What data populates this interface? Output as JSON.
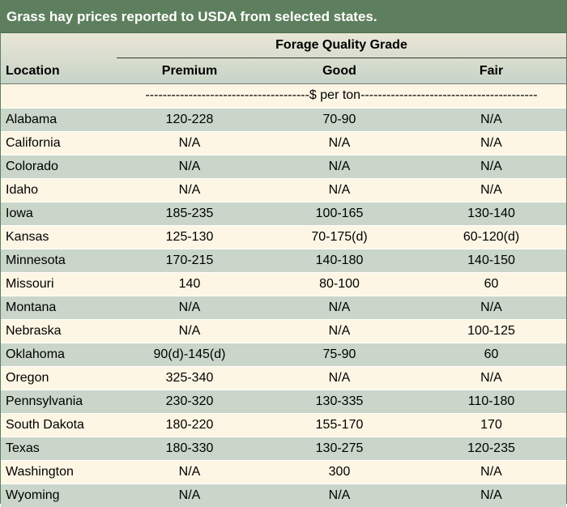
{
  "title": "Grass hay prices reported to USDA from selected states.",
  "header": {
    "group_label": "Forage Quality Grade",
    "location_label": "Location",
    "columns": [
      "Premium",
      "Good",
      "Fair"
    ]
  },
  "unit_label": "--------------------------------------$ per ton-----------------------------------------",
  "rows": [
    {
      "location": "Alabama",
      "premium": "120-228",
      "good": "70-90",
      "fair": "N/A"
    },
    {
      "location": "California",
      "premium": "N/A",
      "good": "N/A",
      "fair": "N/A"
    },
    {
      "location": "Colorado",
      "premium": "N/A",
      "good": "N/A",
      "fair": "N/A"
    },
    {
      "location": "Idaho",
      "premium": "N/A",
      "good": "N/A",
      "fair": "N/A"
    },
    {
      "location": "Iowa",
      "premium": "185-235",
      "good": "100-165",
      "fair": "130-140"
    },
    {
      "location": "Kansas",
      "premium": "125-130",
      "good": "70-175(d)",
      "fair": "60-120(d)"
    },
    {
      "location": "Minnesota",
      "premium": "170-215",
      "good": "140-180",
      "fair": "140-150"
    },
    {
      "location": "Missouri",
      "premium": "140",
      "good": "80-100",
      "fair": "60"
    },
    {
      "location": "Montana",
      "premium": "N/A",
      "good": "N/A",
      "fair": "N/A"
    },
    {
      "location": "Nebraska",
      "premium": "N/A",
      "good": "N/A",
      "fair": "100-125"
    },
    {
      "location": "Oklahoma",
      "premium": "90(d)-145(d)",
      "good": "75-90",
      "fair": "60"
    },
    {
      "location": "Oregon",
      "premium": "325-340",
      "good": "N/A",
      "fair": "N/A"
    },
    {
      "location": "Pennsylvania",
      "premium": "230-320",
      "good": "130-335",
      "fair": "110-180"
    },
    {
      "location": "South Dakota",
      "premium": "180-220",
      "good": "155-170",
      "fair": "170"
    },
    {
      "location": "Texas",
      "premium": "180-330",
      "good": "130-275",
      "fair": "120-235"
    },
    {
      "location": "Washington",
      "premium": "N/A",
      "good": "300",
      "fair": "N/A"
    },
    {
      "location": "Wyoming",
      "premium": "N/A",
      "good": "N/A",
      "fair": "N/A"
    }
  ]
}
